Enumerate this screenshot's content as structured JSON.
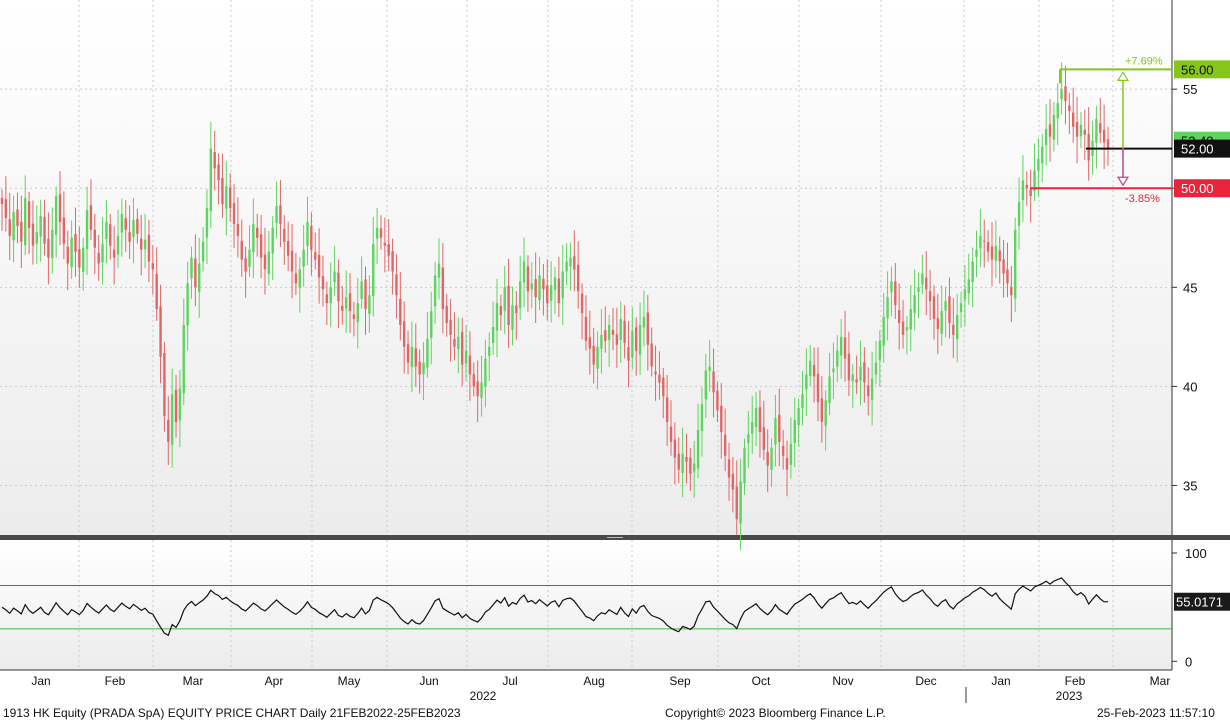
{
  "chart_data": {
    "type": "candlestick",
    "price_panel": {
      "y_ticks": [
        "35",
        "40",
        "45",
        "50",
        "55"
      ],
      "ylim": [
        32.5,
        59.5
      ],
      "grid": true,
      "up_color": "#5fd35f",
      "down_color": "#e06666",
      "approx_daily_closes": [
        49.2,
        48.5,
        47.6,
        48.8,
        48.1,
        47.3,
        49.5,
        48.0,
        47.1,
        47.8,
        48.6,
        47.2,
        46.5,
        47.9,
        49.6,
        48.3,
        47.2,
        46.2,
        47.5,
        46.8,
        46.0,
        47.0,
        48.9,
        47.9,
        47.0,
        46.2,
        47.2,
        48.3,
        47.1,
        46.5,
        47.6,
        48.7,
        47.9,
        47.3,
        48.4,
        47.7,
        46.9,
        47.4,
        46.3,
        45.9,
        43.9,
        41.5,
        38.5,
        37.2,
        39.6,
        38.2,
        39.9,
        43.1,
        45.2,
        46.5,
        45.0,
        46.2,
        47.3,
        49.0,
        52.0,
        51.0,
        50.4,
        49.2,
        50.1,
        49.0,
        48.2,
        47.6,
        46.4,
        45.8,
        46.9,
        48.2,
        47.5,
        46.5,
        45.9,
        46.8,
        48.0,
        49.1,
        48.2,
        47.3,
        46.6,
        45.8,
        45.2,
        45.9,
        46.9,
        48.3,
        46.9,
        46.4,
        45.5,
        44.9,
        44.2,
        45.0,
        45.8,
        44.3,
        43.8,
        44.5,
        43.8,
        43.4,
        44.2,
        45.3,
        43.9,
        44.6,
        47.2,
        48.0,
        47.5,
        47.1,
        46.6,
        45.8,
        44.6,
        43.1,
        42.0,
        41.2,
        42.0,
        41.0,
        40.6,
        41.2,
        42.4,
        43.8,
        45.6,
        46.2,
        43.9,
        43.2,
        42.6,
        42.0,
        42.5,
        41.1,
        41.8,
        40.6,
        40.0,
        39.5,
        40.2,
        41.4,
        42.0,
        43.0,
        44.2,
        43.6,
        45.0,
        43.1,
        44.1,
        43.7,
        45.3,
        46.3,
        44.8,
        45.2,
        44.5,
        45.6,
        44.9,
        44.2,
        45.1,
        45.5,
        44.2,
        45.8,
        46.3,
        46.5,
        45.9,
        44.8,
        43.7,
        42.3,
        41.9,
        41.1,
        42.0,
        42.6,
        42.3,
        43.1,
        42.6,
        42.1,
        43.4,
        42.2,
        41.3,
        42.8,
        41.8,
        43.1,
        43.5,
        42.1,
        41.0,
        40.6,
        40.2,
        39.5,
        38.2,
        37.2,
        36.4,
        35.8,
        36.6,
        36.2,
        35.6,
        36.1,
        37.8,
        39.1,
        40.8,
        41.0,
        39.7,
        38.8,
        37.7,
        36.5,
        35.4,
        34.8,
        33.3,
        35.2,
        36.9,
        37.6,
        38.2,
        38.9,
        37.7,
        36.8,
        36.0,
        36.9,
        38.4,
        37.2,
        36.5,
        35.8,
        37.1,
        38.3,
        38.9,
        39.6,
        40.6,
        41.3,
        40.5,
        39.2,
        38.2,
        39.3,
        40.5,
        40.9,
        41.8,
        42.5,
        41.4,
        40.3,
        40.6,
        40.2,
        41.0,
        40.2,
        39.5,
        40.4,
        41.2,
        42.3,
        43.5,
        44.5,
        45.3,
        44.1,
        43.2,
        42.6,
        43.0,
        43.9,
        44.6,
        45.0,
        45.7,
        44.9,
        44.3,
        43.4,
        42.9,
        43.8,
        44.3,
        43.2,
        42.6,
        43.6,
        44.2,
        44.9,
        45.4,
        46.3,
        46.9,
        47.6,
        47.3,
        46.8,
        46.4,
        47.1,
        46.3,
        45.7,
        45.2,
        44.6,
        47.9,
        49.3,
        50.4,
        50.0,
        49.6,
        50.9,
        51.5,
        52.1,
        53.0,
        52.6,
        53.7,
        54.3,
        55.0,
        54.4,
        53.9,
        53.1,
        52.6,
        53.2,
        52.7,
        51.4,
        52.4,
        53.5,
        52.8,
        52.3,
        52.0
      ],
      "annotations": [
        {
          "type": "level",
          "label": "56.00",
          "value": 56.0,
          "color": "#86c51a"
        },
        {
          "type": "level",
          "label": "52.00",
          "value": 52.0,
          "color": "#111111"
        },
        {
          "type": "level",
          "label": "50.00",
          "value": 50.0,
          "color": "#e8253b"
        },
        {
          "type": "percent",
          "label": "+7.69%",
          "color": "#86c51a"
        },
        {
          "type": "percent",
          "label": "-3.85%",
          "color": "#e8253b"
        },
        {
          "type": "hidden-label",
          "label": "52.40",
          "value": 52.4
        }
      ]
    },
    "indicator_panel": {
      "y_ticks": [
        "0",
        "100"
      ],
      "ylim": [
        -8,
        112
      ],
      "upper_line": 70,
      "lower_line": 30,
      "upper_color": "#d43a3a",
      "lower_color": "#3cb83c",
      "last_value_label": "55.0171",
      "last_value": 55.0171
    },
    "x_axis": {
      "months": [
        "Jan",
        "Feb",
        "Mar",
        "Apr",
        "May",
        "Jun",
        "Jul",
        "Aug",
        "Sep",
        "Oct",
        "Nov",
        "Dec",
        "Jan",
        "Feb",
        "Mar"
      ],
      "years": [
        "2022",
        "2023"
      ]
    }
  },
  "footer": {
    "left": "1913 HK Equity (PRADA SpA) EQUITY PRICE CHART  Daily 21FEB2022-25FEB2023",
    "center": "Copyright© 2023 Bloomberg Finance L.P.",
    "right": "25-Feb-2023 11:57:10"
  }
}
